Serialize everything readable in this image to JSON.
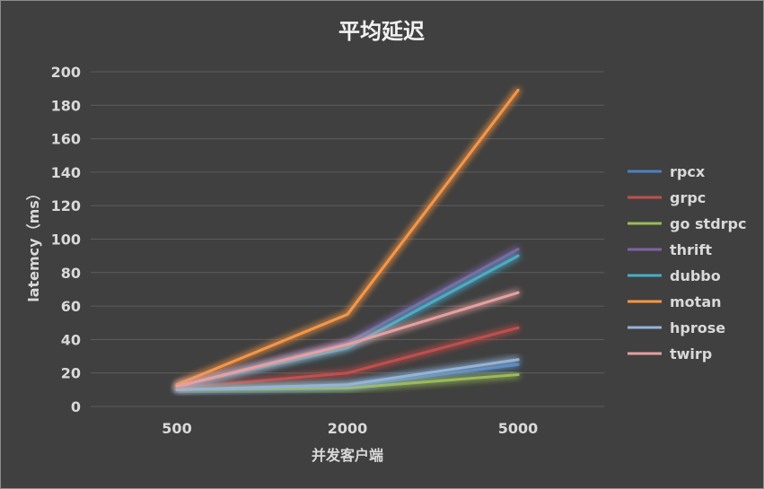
{
  "chart_data": {
    "type": "line",
    "title": "平均延迟",
    "xlabel": "并发客户端",
    "ylabel": "latemcy（ms）",
    "categories": [
      "500",
      "2000",
      "5000"
    ],
    "ylim": [
      0,
      200
    ],
    "yticks": [
      0,
      20,
      40,
      60,
      80,
      100,
      120,
      140,
      160,
      180,
      200
    ],
    "grid": true,
    "legend_position": "right",
    "series": [
      {
        "name": "rpcx",
        "color": "#4f81bd",
        "values": [
          10,
          12,
          25
        ]
      },
      {
        "name": "grpc",
        "color": "#c0504d",
        "values": [
          11,
          20,
          47
        ]
      },
      {
        "name": "go stdrpc",
        "color": "#9bbb59",
        "values": [
          10,
          11,
          19
        ]
      },
      {
        "name": "thrift",
        "color": "#8064a2",
        "values": [
          12,
          38,
          94
        ]
      },
      {
        "name": "dubbo",
        "color": "#4bacc6",
        "values": [
          12,
          35,
          90
        ]
      },
      {
        "name": "motan",
        "color": "#f79646",
        "values": [
          13,
          55,
          189
        ]
      },
      {
        "name": "hprose",
        "color": "#95b3d7",
        "values": [
          10,
          13,
          28
        ]
      },
      {
        "name": "twirp",
        "color": "#e6a0a0",
        "values": [
          12,
          37,
          68
        ]
      }
    ]
  }
}
